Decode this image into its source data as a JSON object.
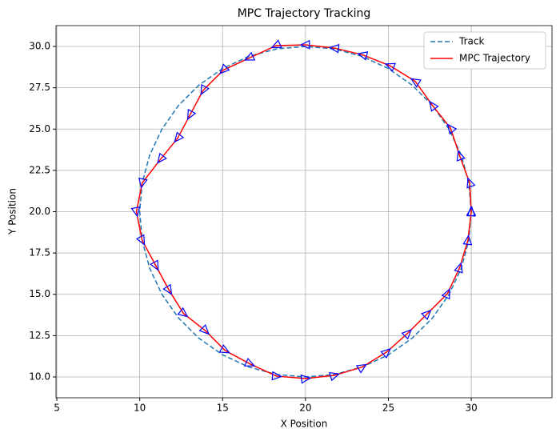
{
  "chart_data": {
    "type": "line",
    "title": "MPC Trajectory Tracking",
    "x_label": "X Position",
    "y_label": "Y Position",
    "xlim": [
      4.95,
      34.87
    ],
    "ylim": [
      8.74,
      31.26
    ],
    "xticks": [
      5,
      10,
      15,
      20,
      25,
      30
    ],
    "yticks": [
      {
        "value": 10,
        "label": "10.0"
      },
      {
        "value": 12.5,
        "label": "12.5"
      },
      {
        "value": 15,
        "label": "15.0"
      },
      {
        "value": 17.5,
        "label": "17.5"
      },
      {
        "value": 20,
        "label": "20.0"
      },
      {
        "value": 22.5,
        "label": "22.5"
      },
      {
        "value": 25,
        "label": "25.0"
      },
      {
        "value": 27.5,
        "label": "27.5"
      },
      {
        "value": 30,
        "label": "30.0"
      }
    ],
    "grid": true,
    "legend": "upper right",
    "series": [
      {
        "name": "Track",
        "color": "#1f77b4",
        "dashed": true,
        "x": [
          30,
          29.85,
          29.4,
          28.66,
          27.66,
          26.43,
          25,
          23.42,
          21.74,
          20,
          18.26,
          16.58,
          15,
          13.57,
          12.34,
          11.34,
          10.6,
          10.15,
          10,
          10.15,
          10.6,
          11.34,
          12.34,
          13.57,
          15,
          16.58,
          18.26,
          20,
          21.74,
          23.42,
          25,
          26.43,
          27.66,
          28.66,
          29.4,
          29.85,
          30
        ],
        "values": [
          20,
          21.74,
          23.42,
          25,
          26.43,
          27.66,
          28.66,
          29.4,
          29.85,
          30,
          29.85,
          29.4,
          28.66,
          27.66,
          26.43,
          25,
          23.42,
          21.74,
          20,
          18.26,
          16.58,
          15,
          13.57,
          12.34,
          11.34,
          10.6,
          10.15,
          10,
          10.15,
          10.6,
          11.34,
          12.34,
          13.57,
          15,
          16.58,
          18.26,
          20
        ]
      },
      {
        "name": "MPC Trajectory",
        "color": "#ff0000",
        "marker_color": "#0000ff",
        "x": [
          30,
          29.9,
          29.3,
          28.75,
          27.66,
          26.62,
          25.1,
          23.45,
          21.75,
          20,
          18.23,
          16.61,
          15.05,
          13.83,
          13.03,
          12.29,
          11.26,
          10.15,
          9.8,
          10.15,
          10.98,
          11.77,
          12.65,
          13.96,
          15.15,
          16.65,
          18.25,
          20,
          21.75,
          23.42,
          24.9,
          26.17,
          27.35,
          28.57,
          29.3,
          29.8,
          30
        ],
        "values": [
          20,
          21.75,
          23.39,
          25.05,
          26.43,
          27.89,
          28.83,
          29.49,
          29.9,
          30.1,
          30.05,
          29.3,
          28.57,
          27.35,
          25.85,
          24.45,
          23.18,
          21.74,
          20,
          18.26,
          16.72,
          15.25,
          13.83,
          12.8,
          11.6,
          10.79,
          10.05,
          9.9,
          10.1,
          10.6,
          11.51,
          12.65,
          13.83,
          15.05,
          16.61,
          18.27,
          20
        ]
      }
    ]
  }
}
